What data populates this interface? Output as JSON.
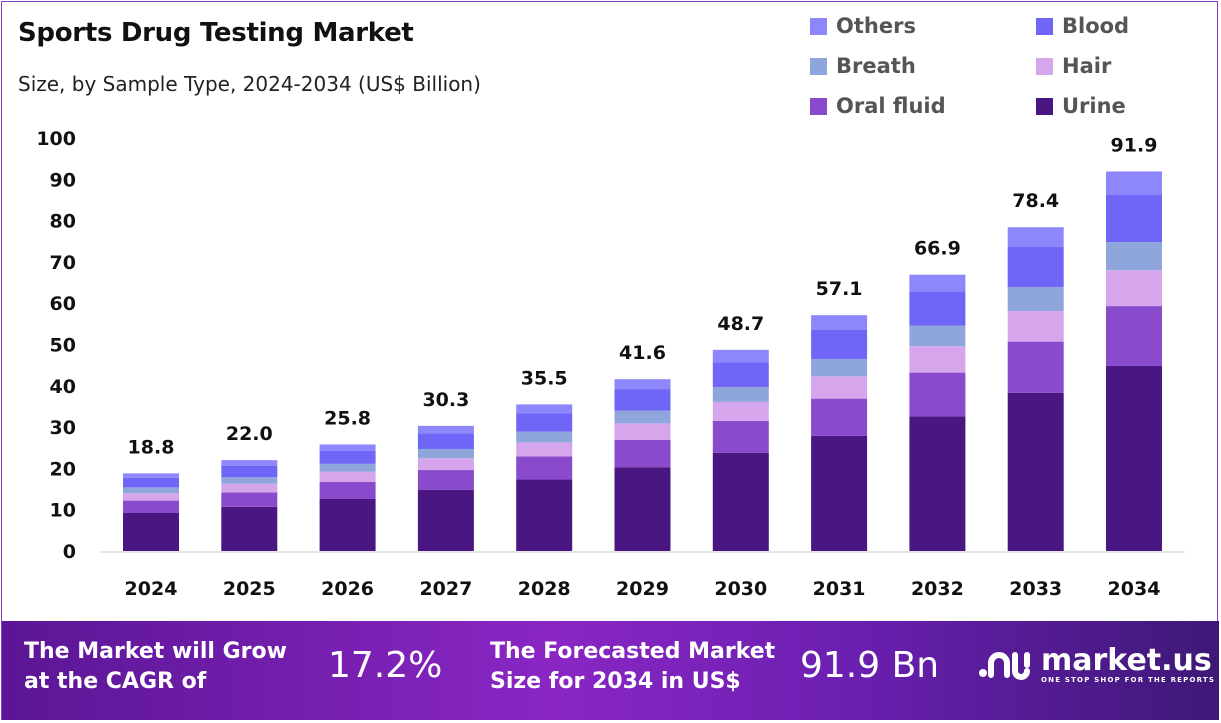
{
  "title": "Sports Drug Testing Market",
  "subtitle": "Size, by Sample Type, 2024-2034 (US$ Billion)",
  "chart_data": {
    "type": "stacked-bar",
    "categories": [
      "2024",
      "2025",
      "2026",
      "2027",
      "2028",
      "2029",
      "2030",
      "2031",
      "2032",
      "2033",
      "2034"
    ],
    "totals": [
      "18.8",
      "22.0",
      "25.8",
      "30.3",
      "35.5",
      "41.6",
      "48.7",
      "57.1",
      "66.9",
      "78.4",
      "91.9"
    ],
    "ylim": [
      0,
      100
    ],
    "yticks": [
      "0",
      "10",
      "20",
      "30",
      "40",
      "50",
      "60",
      "70",
      "80",
      "90",
      "100"
    ],
    "grid": false,
    "legend_position": "top-right",
    "series": [
      {
        "name": "Urine",
        "color": "#4a1782",
        "values": [
          9.2,
          10.7,
          12.6,
          14.8,
          17.3,
          20.3,
          23.8,
          27.9,
          32.6,
          38.3,
          44.8
        ]
      },
      {
        "name": "Oral fluid",
        "color": "#8a4acc",
        "values": [
          3.0,
          3.5,
          4.1,
          4.8,
          5.6,
          6.6,
          7.7,
          9.0,
          10.6,
          12.4,
          14.5
        ]
      },
      {
        "name": "Hair",
        "color": "#d6a6ec",
        "values": [
          1.8,
          2.1,
          2.5,
          2.9,
          3.4,
          4.0,
          4.6,
          5.4,
          6.4,
          7.4,
          8.7
        ]
      },
      {
        "name": "Breath",
        "color": "#8ea6dc",
        "values": [
          1.4,
          1.6,
          1.9,
          2.2,
          2.6,
          3.1,
          3.6,
          4.2,
          5.0,
          5.8,
          6.8
        ]
      },
      {
        "name": "Blood",
        "color": "#6f66f7",
        "values": [
          2.3,
          2.7,
          3.2,
          3.8,
          4.4,
          5.2,
          6.0,
          7.1,
          8.3,
          9.7,
          11.4
        ]
      },
      {
        "name": "Others",
        "color": "#8d87fb",
        "values": [
          1.1,
          1.4,
          1.5,
          1.8,
          2.2,
          2.4,
          3.0,
          3.5,
          4.0,
          4.8,
          5.7
        ]
      }
    ]
  },
  "legend": [
    {
      "label": "Others",
      "color": "#8d87fb"
    },
    {
      "label": "Blood",
      "color": "#6f66f7"
    },
    {
      "label": "Breath",
      "color": "#8ea6dc"
    },
    {
      "label": "Hair",
      "color": "#d6a6ec"
    },
    {
      "label": "Oral fluid",
      "color": "#8a4acc"
    },
    {
      "label": "Urine",
      "color": "#4a1782"
    }
  ],
  "footer": {
    "cagr_label_1": "The Market will Grow",
    "cagr_label_2": "at the CAGR of",
    "cagr_value": "17.2%",
    "forecast_label_1": "The Forecasted Market",
    "forecast_label_2": "Size for 2034 in US$",
    "forecast_value": "91.9 Bn",
    "brand": "market.us",
    "tagline": "ONE STOP SHOP FOR THE REPORTS"
  }
}
